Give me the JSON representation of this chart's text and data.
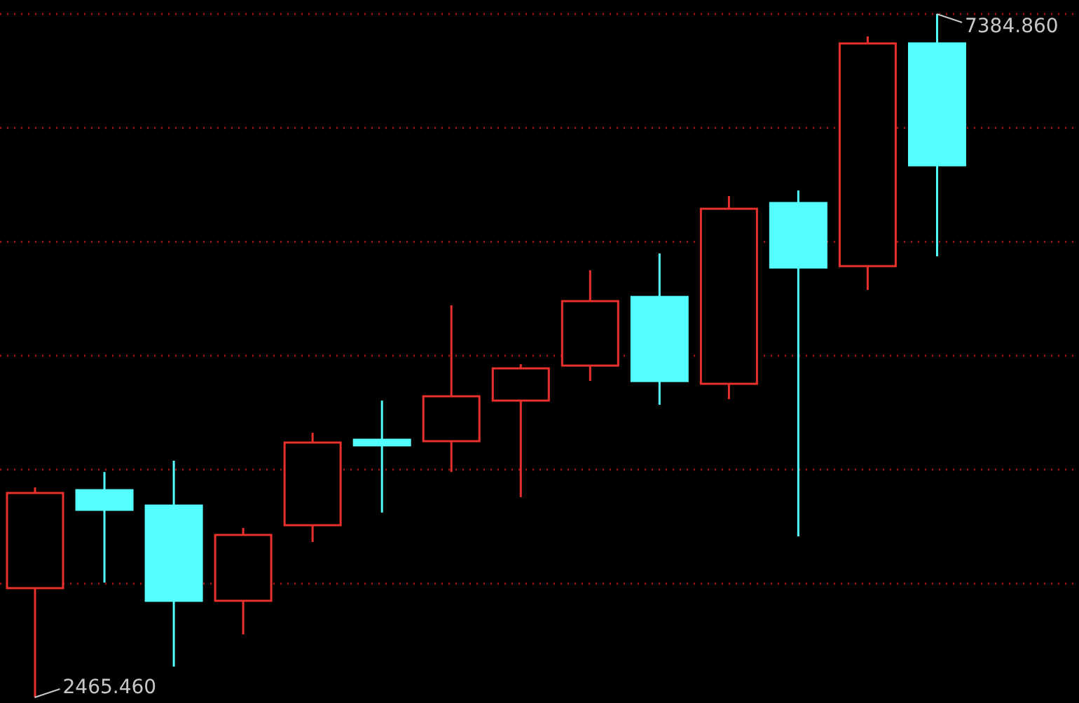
{
  "chart_data": {
    "type": "candlestick",
    "categories": [
      null,
      null,
      null,
      null,
      null,
      null,
      null,
      null,
      null,
      null,
      null,
      null,
      null,
      null
    ],
    "ohlc": [
      [
        3252,
        3977,
        2465.46,
        3937
      ],
      [
        3957,
        4088,
        3292,
        3816
      ],
      [
        3846,
        4169,
        2687,
        3161
      ],
      [
        3161,
        3685,
        2919,
        3635
      ],
      [
        3705,
        4370,
        3584,
        4300
      ],
      [
        4320,
        4602,
        3796,
        4280
      ],
      [
        4310,
        5288,
        4088,
        4633
      ],
      [
        4602,
        4864,
        3907,
        4834
      ],
      [
        4854,
        5540,
        4743,
        5318
      ],
      [
        5348,
        5661,
        4572,
        4743
      ],
      [
        4723,
        6074,
        4612,
        5983
      ],
      [
        6024,
        6115,
        3625,
        5560
      ],
      [
        5570,
        7224,
        5399,
        7173
      ],
      [
        7173,
        7384.86,
        5641,
        6296
      ]
    ],
    "colors": [
      "#e8302c",
      "#54ffff",
      "#54ffff",
      "#e8302c",
      "#e8302c",
      "#54ffff",
      "#e8302c",
      "#e8302c",
      "#e8302c",
      "#54ffff",
      "#e8302c",
      "#54ffff",
      "#e8302c",
      "#54ffff"
    ],
    "yticks": [
      {
        "value": 7384.86,
        "label": null
      },
      {
        "value": 6565,
        "label": null
      },
      {
        "value": 5745,
        "label": null
      },
      {
        "value": 4925,
        "label": null
      },
      {
        "value": 4105,
        "label": null
      },
      {
        "value": 3285,
        "label": null
      }
    ],
    "grid": "y",
    "annotations": [
      "7384.860",
      "2465.460"
    ]
  }
}
